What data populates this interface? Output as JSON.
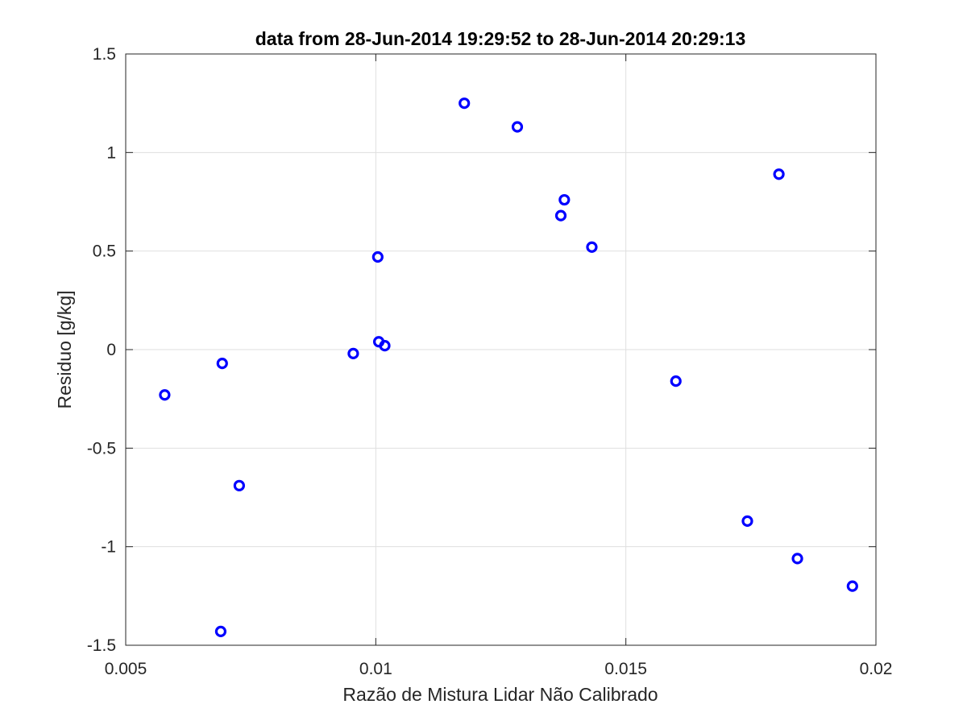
{
  "chart_data": {
    "type": "scatter",
    "title": "data from 28-Jun-2014 19:29:52 to 28-Jun-2014 20:29:13",
    "xlabel": "Razão de Mistura Lidar Não Calibrado",
    "ylabel": "Residuo [g/kg]",
    "xlim": [
      0.005,
      0.02
    ],
    "ylim": [
      -1.5,
      1.5
    ],
    "xticks": [
      {
        "value": 0.005,
        "label": "0.005"
      },
      {
        "value": 0.01,
        "label": "0.01"
      },
      {
        "value": 0.015,
        "label": "0.015"
      },
      {
        "value": 0.02,
        "label": "0.02"
      }
    ],
    "yticks": [
      {
        "value": -1.5,
        "label": "-1.5"
      },
      {
        "value": -1,
        "label": "-1"
      },
      {
        "value": -0.5,
        "label": "-0.5"
      },
      {
        "value": 0,
        "label": "0"
      },
      {
        "value": 0.5,
        "label": "0.5"
      },
      {
        "value": 1,
        "label": "1"
      },
      {
        "value": 1.5,
        "label": "1.5"
      }
    ],
    "grid": true,
    "marker": "circle",
    "color": "#0000ff",
    "series": [
      {
        "points": [
          {
            "x": 0.00578,
            "y": -0.23
          },
          {
            "x": 0.00693,
            "y": -0.07
          },
          {
            "x": 0.0069,
            "y": -1.43
          },
          {
            "x": 0.00727,
            "y": -0.69
          },
          {
            "x": 0.00955,
            "y": -0.02
          },
          {
            "x": 0.01004,
            "y": 0.47
          },
          {
            "x": 0.01006,
            "y": 0.04
          },
          {
            "x": 0.01018,
            "y": 0.02
          },
          {
            "x": 0.01177,
            "y": 1.25
          },
          {
            "x": 0.01283,
            "y": 1.13
          },
          {
            "x": 0.0137,
            "y": 0.68
          },
          {
            "x": 0.01377,
            "y": 0.76
          },
          {
            "x": 0.01432,
            "y": 0.52
          },
          {
            "x": 0.016,
            "y": -0.16
          },
          {
            "x": 0.01743,
            "y": -0.87
          },
          {
            "x": 0.01806,
            "y": 0.89
          },
          {
            "x": 0.01843,
            "y": -1.06
          },
          {
            "x": 0.01953,
            "y": -1.2
          }
        ]
      }
    ]
  }
}
